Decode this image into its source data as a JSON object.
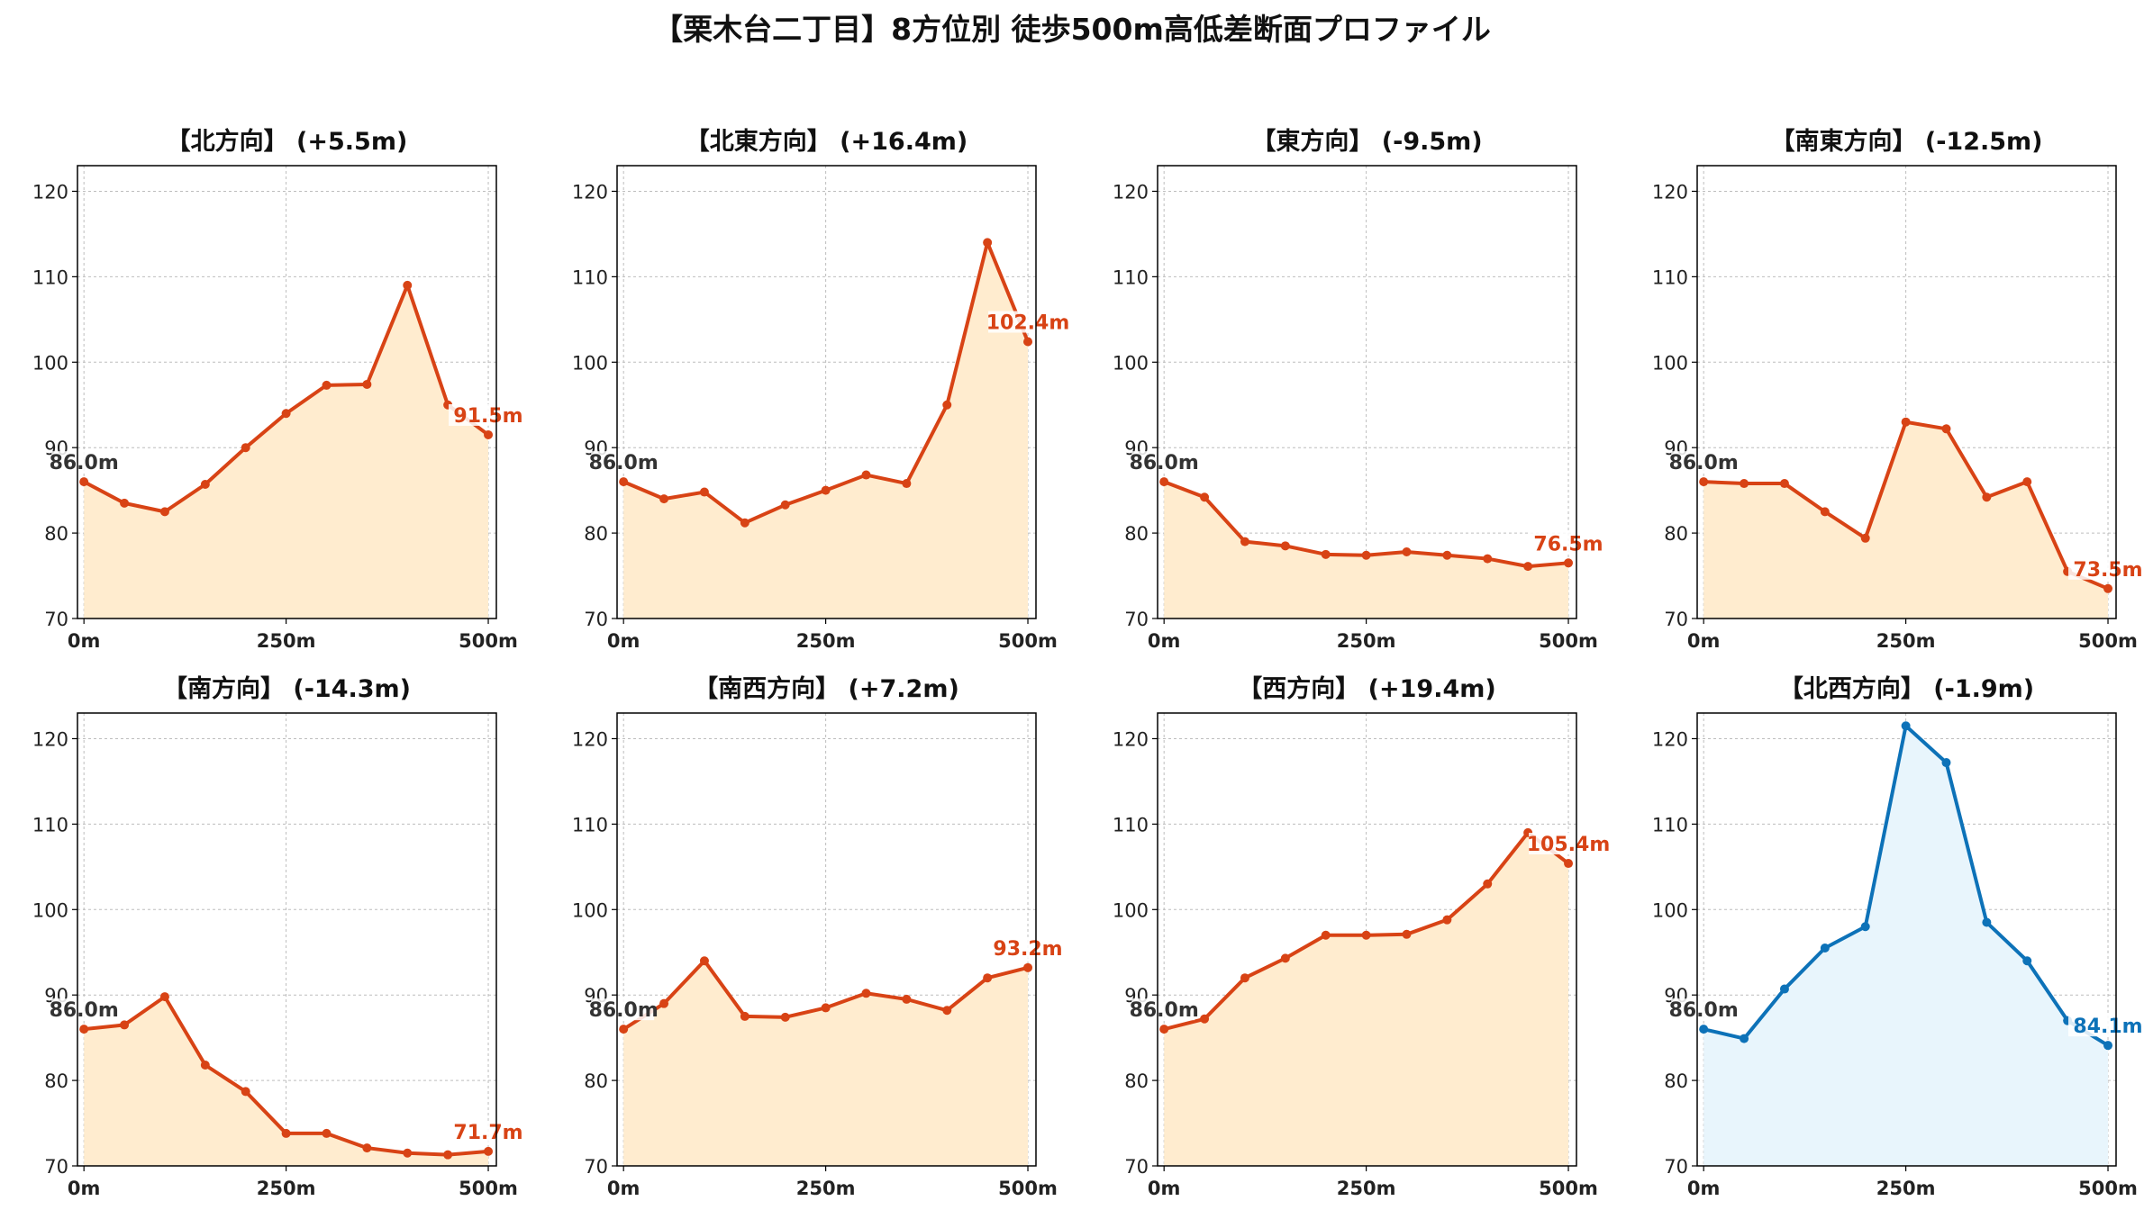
{
  "figure": {
    "suptitle": "【栗木台二丁目】8方位別 徒歩500m高低差断面プロファイル"
  },
  "style": {
    "up_line": "#D84315",
    "up_fill": "#FFECCF",
    "down_line": "#0D72B8",
    "down_fill": "#E8F5FC",
    "start_label": "#333333",
    "grid": "#BDBDBD"
  },
  "chart_data": [
    {
      "type": "area",
      "title": "【北方向】 (+5.5m)",
      "x": [
        0,
        50,
        100,
        150,
        200,
        250,
        300,
        350,
        400,
        450,
        500
      ],
      "values": [
        86.0,
        83.5,
        82.5,
        85.7,
        90.0,
        94.0,
        97.3,
        97.4,
        109.0,
        95.0,
        91.5
      ],
      "start_label": "86.0m",
      "end_label": "91.5m",
      "trend": "up",
      "xticks": [
        "0m",
        "250m",
        "500m"
      ],
      "yticks": [
        "70",
        "80",
        "90",
        "100",
        "110",
        "120"
      ],
      "ylim": [
        70,
        123
      ],
      "xlim": [
        -8,
        510
      ],
      "grid": true
    },
    {
      "type": "area",
      "title": "【北東方向】 (+16.4m)",
      "x": [
        0,
        50,
        100,
        150,
        200,
        250,
        300,
        350,
        400,
        450,
        500
      ],
      "values": [
        86.0,
        84.0,
        84.8,
        81.2,
        83.3,
        85.0,
        86.8,
        85.8,
        95.0,
        114.0,
        102.4
      ],
      "start_label": "86.0m",
      "end_label": "102.4m",
      "trend": "up",
      "xticks": [
        "0m",
        "250m",
        "500m"
      ],
      "yticks": [
        "70",
        "80",
        "90",
        "100",
        "110",
        "120"
      ],
      "ylim": [
        70,
        123
      ],
      "xlim": [
        -8,
        510
      ],
      "grid": true
    },
    {
      "type": "area",
      "title": "【東方向】 (-9.5m)",
      "x": [
        0,
        50,
        100,
        150,
        200,
        250,
        300,
        350,
        400,
        450,
        500
      ],
      "values": [
        86.0,
        84.2,
        79.0,
        78.5,
        77.5,
        77.4,
        77.8,
        77.4,
        77.0,
        76.1,
        76.5
      ],
      "start_label": "86.0m",
      "end_label": "76.5m",
      "trend": "up",
      "xticks": [
        "0m",
        "250m",
        "500m"
      ],
      "yticks": [
        "70",
        "80",
        "90",
        "100",
        "110",
        "120"
      ],
      "ylim": [
        70,
        123
      ],
      "xlim": [
        -8,
        510
      ],
      "grid": true
    },
    {
      "type": "area",
      "title": "【南東方向】 (-12.5m)",
      "x": [
        0,
        50,
        100,
        150,
        200,
        250,
        300,
        350,
        400,
        450,
        500
      ],
      "values": [
        86.0,
        85.8,
        85.8,
        82.5,
        79.4,
        93.0,
        92.2,
        84.2,
        86.0,
        75.5,
        73.5
      ],
      "start_label": "86.0m",
      "end_label": "73.5m",
      "trend": "up",
      "xticks": [
        "0m",
        "250m",
        "500m"
      ],
      "yticks": [
        "70",
        "80",
        "90",
        "100",
        "110",
        "120"
      ],
      "ylim": [
        70,
        123
      ],
      "xlim": [
        -8,
        510
      ],
      "grid": true
    },
    {
      "type": "area",
      "title": "【南方向】 (-14.3m)",
      "x": [
        0,
        50,
        100,
        150,
        200,
        250,
        300,
        350,
        400,
        450,
        500
      ],
      "values": [
        86.0,
        86.5,
        89.8,
        81.8,
        78.7,
        73.8,
        73.8,
        72.1,
        71.5,
        71.3,
        71.7
      ],
      "start_label": "86.0m",
      "end_label": "71.7m",
      "trend": "up",
      "xticks": [
        "0m",
        "250m",
        "500m"
      ],
      "yticks": [
        "70",
        "80",
        "90",
        "100",
        "110",
        "120"
      ],
      "ylim": [
        70,
        123
      ],
      "xlim": [
        -8,
        510
      ],
      "grid": true
    },
    {
      "type": "area",
      "title": "【南西方向】 (+7.2m)",
      "x": [
        0,
        50,
        100,
        150,
        200,
        250,
        300,
        350,
        400,
        450,
        500
      ],
      "values": [
        86.0,
        89.0,
        94.0,
        87.5,
        87.4,
        88.5,
        90.2,
        89.5,
        88.2,
        92.0,
        93.2
      ],
      "start_label": "86.0m",
      "end_label": "93.2m",
      "trend": "up",
      "xticks": [
        "0m",
        "250m",
        "500m"
      ],
      "yticks": [
        "70",
        "80",
        "90",
        "100",
        "110",
        "120"
      ],
      "ylim": [
        70,
        123
      ],
      "xlim": [
        -8,
        510
      ],
      "grid": true
    },
    {
      "type": "area",
      "title": "【西方向】 (+19.4m)",
      "x": [
        0,
        50,
        100,
        150,
        200,
        250,
        300,
        350,
        400,
        450,
        500
      ],
      "values": [
        86.0,
        87.2,
        92.0,
        94.3,
        97.0,
        97.0,
        97.1,
        98.8,
        103.0,
        109.0,
        105.4
      ],
      "start_label": "86.0m",
      "end_label": "105.4m",
      "trend": "up",
      "xticks": [
        "0m",
        "250m",
        "500m"
      ],
      "yticks": [
        "70",
        "80",
        "90",
        "100",
        "110",
        "120"
      ],
      "ylim": [
        70,
        123
      ],
      "xlim": [
        -8,
        510
      ],
      "grid": true
    },
    {
      "type": "area",
      "title": "【北西方向】 (-1.9m)",
      "x": [
        0,
        50,
        100,
        150,
        200,
        250,
        300,
        350,
        400,
        450,
        500
      ],
      "values": [
        86.0,
        84.9,
        90.7,
        95.5,
        98.0,
        121.5,
        117.2,
        98.5,
        94.0,
        87.0,
        84.1
      ],
      "start_label": "86.0m",
      "end_label": "84.1m",
      "trend": "down",
      "xticks": [
        "0m",
        "250m",
        "500m"
      ],
      "yticks": [
        "70",
        "80",
        "90",
        "100",
        "110",
        "120"
      ],
      "ylim": [
        70,
        123
      ],
      "xlim": [
        -8,
        510
      ],
      "grid": true
    }
  ]
}
